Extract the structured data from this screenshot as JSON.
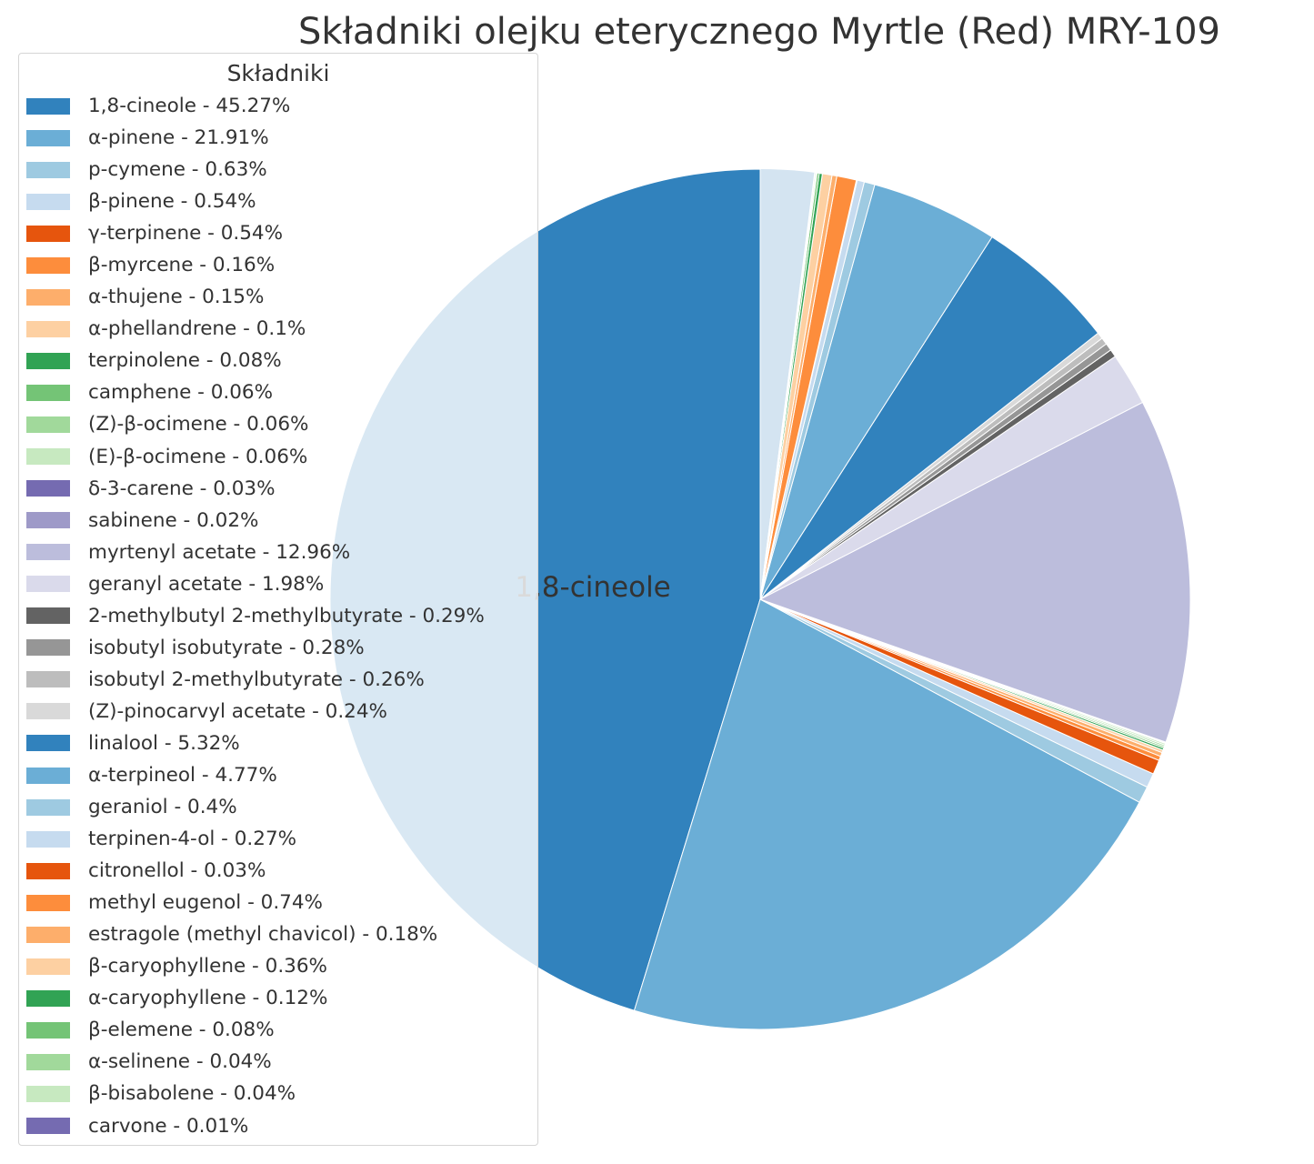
{
  "chart_data": {
    "type": "pie",
    "title": "Składniki olejku eterycznego Myrtle (Red) MRY-109",
    "legend_title": "Składniki",
    "legend_position": "left",
    "start_angle_deg": 90,
    "direction": "counterclockwise",
    "slice_labels": [
      "1,8-cineole"
    ],
    "background_slice": {
      "color": "#d4e4f1"
    },
    "slices": [
      {
        "name": "1,8-cineole",
        "value": 45.27,
        "label": "1,8-cineole - 45.27%",
        "color": "#3182bd"
      },
      {
        "name": "α-pinene",
        "value": 21.91,
        "label": "α-pinene - 21.91%",
        "color": "#6baed6"
      },
      {
        "name": "p-cymene",
        "value": 0.63,
        "label": "p-cymene - 0.63%",
        "color": "#9ecae1"
      },
      {
        "name": "β-pinene",
        "value": 0.54,
        "label": "β-pinene - 0.54%",
        "color": "#c6dbef"
      },
      {
        "name": "γ-terpinene",
        "value": 0.54,
        "label": "γ-terpinene - 0.54%",
        "color": "#e6550d"
      },
      {
        "name": "β-myrcene",
        "value": 0.16,
        "label": "β-myrcene - 0.16%",
        "color": "#fd8d3c"
      },
      {
        "name": "α-thujene",
        "value": 0.15,
        "label": "α-thujene - 0.15%",
        "color": "#fdae6b"
      },
      {
        "name": "α-phellandrene",
        "value": 0.1,
        "label": "α-phellandrene - 0.1%",
        "color": "#fdd0a2"
      },
      {
        "name": "terpinolene",
        "value": 0.08,
        "label": "terpinolene - 0.08%",
        "color": "#31a354"
      },
      {
        "name": "camphene",
        "value": 0.06,
        "label": "camphene - 0.06%",
        "color": "#74c476"
      },
      {
        "name": "(Z)-β-ocimene",
        "value": 0.06,
        "label": "(Z)-β-ocimene - 0.06%",
        "color": "#a1d99b"
      },
      {
        "name": "(E)-β-ocimene",
        "value": 0.06,
        "label": "(E)-β-ocimene - 0.06%",
        "color": "#c7e9c0"
      },
      {
        "name": "δ-3-carene",
        "value": 0.03,
        "label": "δ-3-carene - 0.03%",
        "color": "#756bb1"
      },
      {
        "name": "sabinene",
        "value": 0.02,
        "label": "sabinene - 0.02%",
        "color": "#9e9ac8"
      },
      {
        "name": "myrtenyl acetate",
        "value": 12.96,
        "label": "myrtenyl acetate - 12.96%",
        "color": "#bcbddc"
      },
      {
        "name": "geranyl acetate",
        "value": 1.98,
        "label": "geranyl acetate - 1.98%",
        "color": "#dadaeb"
      },
      {
        "name": "2-methylbutyl 2-methylbutyrate",
        "value": 0.29,
        "label": "2-methylbutyl 2-methylbutyrate - 0.29%",
        "color": "#636363"
      },
      {
        "name": "isobutyl isobutyrate",
        "value": 0.28,
        "label": "isobutyl isobutyrate - 0.28%",
        "color": "#969696"
      },
      {
        "name": "isobutyl 2-methylbutyrate",
        "value": 0.26,
        "label": "isobutyl 2-methylbutyrate - 0.26%",
        "color": "#bdbdbd"
      },
      {
        "name": "(Z)-pinocarvyl acetate",
        "value": 0.24,
        "label": "(Z)-pinocarvyl acetate - 0.24%",
        "color": "#d9d9d9"
      },
      {
        "name": "linalool",
        "value": 5.32,
        "label": "linalool - 5.32%",
        "color": "#3182bd"
      },
      {
        "name": "α-terpineol",
        "value": 4.77,
        "label": "α-terpineol - 4.77%",
        "color": "#6baed6"
      },
      {
        "name": "geraniol",
        "value": 0.4,
        "label": "geraniol - 0.4%",
        "color": "#9ecae1"
      },
      {
        "name": "terpinen-4-ol",
        "value": 0.27,
        "label": "terpinen-4-ol - 0.27%",
        "color": "#c6dbef"
      },
      {
        "name": "citronellol",
        "value": 0.03,
        "label": "citronellol - 0.03%",
        "color": "#e6550d"
      },
      {
        "name": "methyl eugenol",
        "value": 0.74,
        "label": "methyl eugenol - 0.74%",
        "color": "#fd8d3c"
      },
      {
        "name": "estragole (methyl chavicol)",
        "value": 0.18,
        "label": "estragole (methyl chavicol) - 0.18%",
        "color": "#fdae6b"
      },
      {
        "name": "β-caryophyllene",
        "value": 0.36,
        "label": "β-caryophyllene - 0.36%",
        "color": "#fdd0a2"
      },
      {
        "name": "α-caryophyllene",
        "value": 0.12,
        "label": "α-caryophyllene - 0.12%",
        "color": "#31a354"
      },
      {
        "name": "β-elemene",
        "value": 0.08,
        "label": "β-elemene - 0.08%",
        "color": "#74c476"
      },
      {
        "name": "α-selinene",
        "value": 0.04,
        "label": "α-selinene - 0.04%",
        "color": "#a1d99b"
      },
      {
        "name": "β-bisabolene",
        "value": 0.04,
        "label": "β-bisabolene - 0.04%",
        "color": "#c7e9c0"
      },
      {
        "name": "carvone",
        "value": 0.01,
        "label": "carvone - 0.01%",
        "color": "#756bb1"
      }
    ]
  }
}
